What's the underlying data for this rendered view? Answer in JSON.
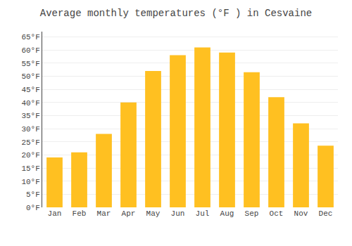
{
  "chart_data": {
    "type": "bar",
    "title": "Average monthly temperatures (°F ) in Cesvaine",
    "categories": [
      "Jan",
      "Feb",
      "Mar",
      "Apr",
      "May",
      "Jun",
      "Jul",
      "Aug",
      "Sep",
      "Oct",
      "Nov",
      "Dec"
    ],
    "values": [
      19,
      21,
      28,
      40,
      52,
      58,
      61,
      59,
      51.5,
      42,
      32,
      23.5
    ],
    "color": "#FFC021",
    "ylim": [
      0,
      67
    ],
    "yticks": [
      {
        "value": 0,
        "label": "0°F"
      },
      {
        "value": 5,
        "label": "5°F"
      },
      {
        "value": 10,
        "label": "10°F"
      },
      {
        "value": 15,
        "label": "15°F"
      },
      {
        "value": 20,
        "label": "20°F"
      },
      {
        "value": 25,
        "label": "25°F"
      },
      {
        "value": 30,
        "label": "30°F"
      },
      {
        "value": 35,
        "label": "35°F"
      },
      {
        "value": 40,
        "label": "40°F"
      },
      {
        "value": 45,
        "label": "45°F"
      },
      {
        "value": 50,
        "label": "50°F"
      },
      {
        "value": 55,
        "label": "55°F"
      },
      {
        "value": 60,
        "label": "60°F"
      },
      {
        "value": 65,
        "label": "65°F"
      }
    ],
    "grid": true
  }
}
